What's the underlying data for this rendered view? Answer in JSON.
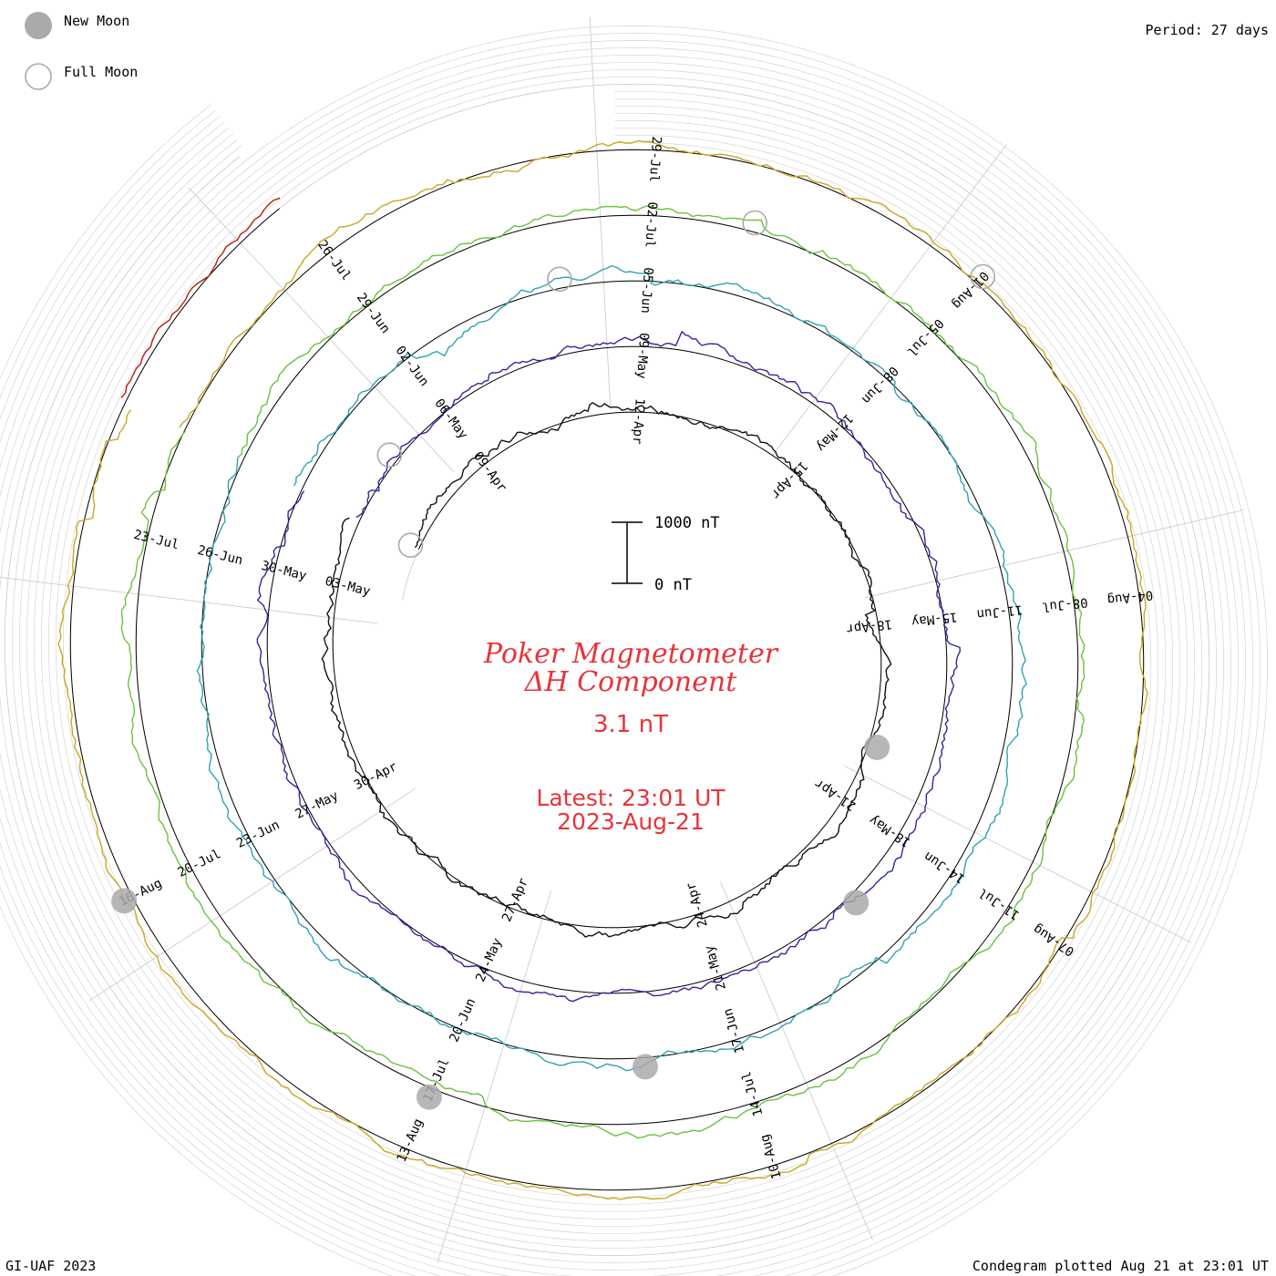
{
  "legend": {
    "new_moon_label": "New Moon",
    "full_moon_label": "Full Moon",
    "new_moon_color": "#aaaaaa",
    "full_moon_color": "#aaaaaa"
  },
  "header": {
    "period_label": "Period: 27 days"
  },
  "title": {
    "line1": "Poker Magnetometer",
    "line2": "ΔH Component",
    "current_value": "3.1 nT",
    "latest_time": "Latest: 23:01 UT",
    "latest_date": "2023-Aug-21",
    "color": "#e8333a"
  },
  "scale_bar": {
    "top_label": "1000 nT",
    "bottom_label": "0 nT",
    "value_nT": 1000
  },
  "footer": {
    "left": "GI-UAF 2023",
    "right": "Condegram plotted Aug 21 at 23:01 UT"
  },
  "chart_data": {
    "type": "line",
    "period_days": 27,
    "start_date": "2023-04-07",
    "end_date": "2023-08-21",
    "unit": "nT",
    "grid": true,
    "series": [
      {
        "color": "#111111",
        "date_labels": [
          "09-Apr",
          "12-Apr",
          "15-Apr",
          "18-Apr",
          "21-Apr",
          "24-Apr",
          "27-Apr",
          "30-Apr",
          "03-May"
        ]
      },
      {
        "color": "#2a2aa0",
        "date_labels": [
          "06-May",
          "09-May",
          "12-May",
          "15-May",
          "18-May",
          "21-May",
          "24-May",
          "27-May",
          "30-May"
        ]
      },
      {
        "color": "#2fa3b0",
        "date_labels": [
          "02-Jun",
          "05-Jun",
          "08-Jun",
          "11-Jun",
          "14-Jun",
          "17-Jun",
          "20-Jun",
          "23-Jun",
          "26-Jun"
        ]
      },
      {
        "color": "#6ac23c",
        "date_labels": [
          "29-Jun",
          "02-Jul",
          "05-Jul",
          "08-Jul",
          "11-Jul",
          "14-Jul",
          "17-Jul",
          "20-Jul",
          "23-Jul"
        ]
      },
      {
        "color": "#c8a820",
        "date_labels": [
          "26-Jul",
          "29-Jul",
          "01-Aug",
          "04-Aug",
          "07-Aug",
          "10-Aug",
          "13-Aug",
          "16-Aug"
        ]
      },
      {
        "color": "#b02010"
      }
    ],
    "moon_phases": [
      {
        "type": "full",
        "date": "2023-04-06"
      },
      {
        "type": "new",
        "date": "2023-04-20"
      },
      {
        "type": "full",
        "date": "2023-05-05"
      },
      {
        "type": "new",
        "date": "2023-05-19"
      },
      {
        "type": "full",
        "date": "2023-06-04"
      },
      {
        "type": "new",
        "date": "2023-06-18"
      },
      {
        "type": "full",
        "date": "2023-07-03"
      },
      {
        "type": "new",
        "date": "2023-07-17"
      },
      {
        "type": "full",
        "date": "2023-08-01"
      },
      {
        "type": "new",
        "date": "2023-08-16"
      }
    ]
  }
}
